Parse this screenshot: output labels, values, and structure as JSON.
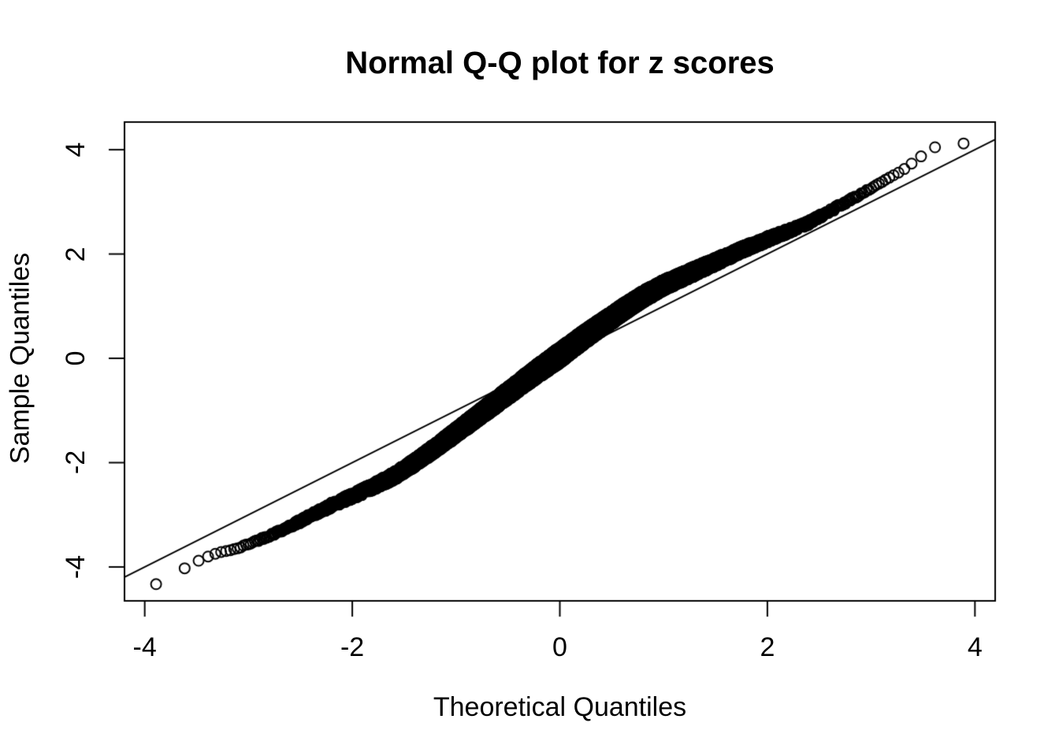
{
  "title": "Normal Q-Q plot for z scores",
  "colors": {
    "foreground": "#000000",
    "background": "#ffffff"
  },
  "chart_data": {
    "type": "scatter",
    "title": "Normal Q-Q plot for z scores",
    "xlabel": "Theoretical Quantiles",
    "ylabel": "Sample Quantiles",
    "xlim": [
      -4.195,
      4.195
    ],
    "ylim": [
      -4.65,
      4.53
    ],
    "x_ticks": [
      -4,
      -2,
      0,
      2,
      4
    ],
    "x_tick_labels": [
      "-4",
      "-2",
      "0",
      "2",
      "4"
    ],
    "y_ticks": [
      -4,
      -2,
      0,
      2,
      4
    ],
    "y_tick_labels": [
      "-4",
      "-2",
      "0",
      "2",
      "4"
    ],
    "grid": false,
    "legend": false,
    "marker": "open-circle",
    "marker_color": "#000000",
    "n_points": 10000,
    "seed": 42,
    "scatter_halfwidth": 0.16,
    "reference_line": {
      "slope": 1,
      "intercept": 0,
      "color": "#000000"
    },
    "qq_curve_anchors": [
      [
        -3.89,
        -4.33
      ],
      [
        -3.61,
        -4.02
      ],
      [
        -3.48,
        -3.88
      ],
      [
        -3.39,
        -3.8
      ],
      [
        -3.31,
        -3.74
      ],
      [
        -3.24,
        -3.7
      ],
      [
        -3.17,
        -3.68
      ],
      [
        -3.1,
        -3.64
      ],
      [
        -3.0,
        -3.56
      ],
      [
        -2.8,
        -3.4
      ],
      [
        -2.6,
        -3.22
      ],
      [
        -2.4,
        -3.02
      ],
      [
        -2.2,
        -2.82
      ],
      [
        -2.0,
        -2.64
      ],
      [
        -1.8,
        -2.46
      ],
      [
        -1.6,
        -2.26
      ],
      [
        -1.4,
        -2.0
      ],
      [
        -1.2,
        -1.72
      ],
      [
        -1.0,
        -1.42
      ],
      [
        -0.8,
        -1.12
      ],
      [
        -0.6,
        -0.82
      ],
      [
        -0.4,
        -0.52
      ],
      [
        -0.2,
        -0.22
      ],
      [
        0.0,
        0.06
      ],
      [
        0.2,
        0.36
      ],
      [
        0.4,
        0.64
      ],
      [
        0.6,
        0.92
      ],
      [
        0.8,
        1.18
      ],
      [
        1.0,
        1.4
      ],
      [
        1.2,
        1.58
      ],
      [
        1.4,
        1.76
      ],
      [
        1.6,
        1.94
      ],
      [
        1.8,
        2.12
      ],
      [
        2.0,
        2.28
      ],
      [
        2.2,
        2.44
      ],
      [
        2.4,
        2.6
      ],
      [
        2.6,
        2.82
      ],
      [
        2.8,
        3.04
      ],
      [
        3.0,
        3.26
      ],
      [
        3.15,
        3.44
      ],
      [
        3.3,
        3.6
      ],
      [
        3.46,
        3.84
      ],
      [
        3.59,
        4.04
      ],
      [
        3.88,
        4.12
      ]
    ]
  }
}
